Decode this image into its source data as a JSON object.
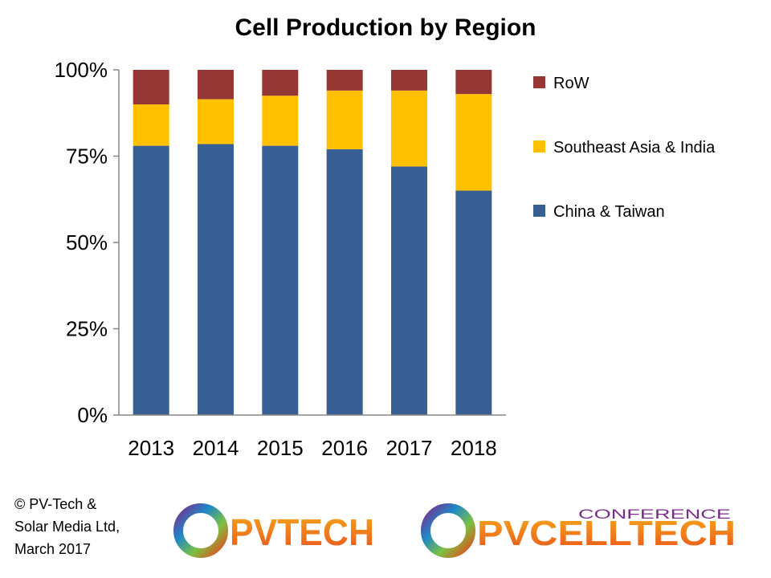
{
  "chart_data": {
    "type": "bar",
    "stacked": true,
    "title": "Cell Production by Region",
    "categories": [
      "2013",
      "2014",
      "2015",
      "2016",
      "2017",
      "2018"
    ],
    "series": [
      {
        "name": "China & Taiwan",
        "color": "#375F93",
        "values": [
          78,
          78.5,
          78,
          77,
          72,
          65
        ]
      },
      {
        "name": "Southeast Asia & India",
        "color": "#FFC000",
        "values": [
          12,
          13,
          14.5,
          17,
          22,
          28
        ]
      },
      {
        "name": "RoW",
        "color": "#953735",
        "values": [
          10,
          8.5,
          7.5,
          6,
          6,
          7
        ]
      }
    ],
    "y_ticks": [
      "0%",
      "25%",
      "50%",
      "75%",
      "100%"
    ],
    "ylim": [
      0,
      100
    ],
    "legend_position": "right",
    "grid": false
  },
  "footer": {
    "copyright_lines": [
      "© PV-Tech &",
      "Solar Media Ltd,",
      "March 2017"
    ],
    "logo_pvtech": "PVTECH",
    "logo_pvcelltech_top": "CONFERENCE",
    "logo_pvcelltech": "PVCELLTECH"
  }
}
